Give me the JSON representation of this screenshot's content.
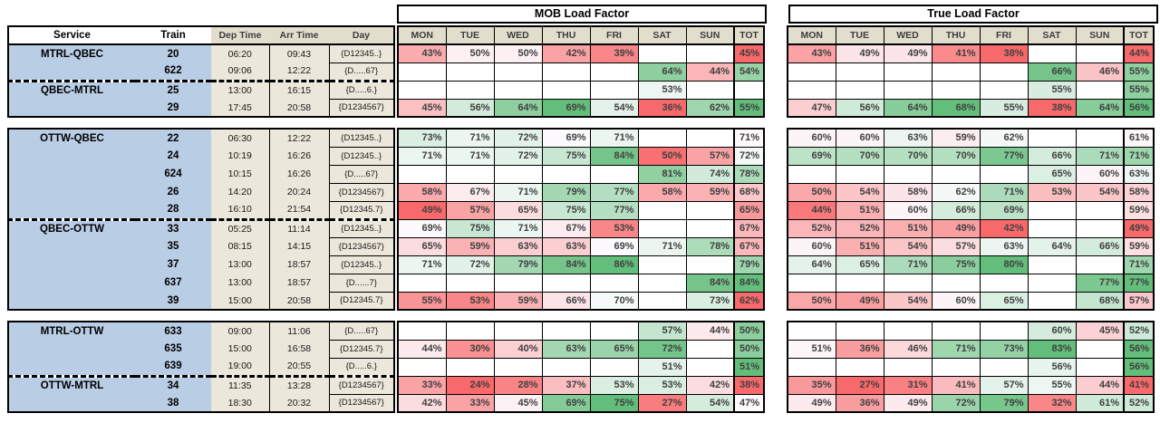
{
  "table": {
    "section_titles": {
      "mob": "MOB Load Factor",
      "true": "True Load Factor"
    },
    "left_headers": {
      "service": "Service",
      "train": "Train",
      "dep": "Dep Time",
      "arr": "Arr Time",
      "day": "Day"
    },
    "day_columns": [
      "MON",
      "TUE",
      "WED",
      "THU",
      "FRI",
      "SAT",
      "SUN",
      "TOT"
    ],
    "colors": {
      "service_bg": "#b9cde5",
      "time_bg": "#ebe7da",
      "header_bg": "#e2decd",
      "scale_red": "#f8696b",
      "scale_white": "#fcfcff",
      "scale_green": "#63be7b",
      "border": "#000000",
      "value_text": "#404040"
    },
    "blocks": [
      {
        "groups": [
          {
            "service": "MTRL-QBEC",
            "rows": [
              {
                "train": "20",
                "dep": "06:20",
                "arr": "09:43",
                "day": "{D12345..}",
                "mob": [
                  "43%",
                  "50%",
                  "50%",
                  "42%",
                  "39%",
                  "",
                  ""
                ],
                "mob_tot": "45%",
                "true": [
                  "43%",
                  "49%",
                  "49%",
                  "41%",
                  "38%",
                  "",
                  ""
                ],
                "true_tot": "44%"
              },
              {
                "train": "622",
                "dep": "09:06",
                "arr": "12:22",
                "day": "{D.....67}",
                "mob": [
                  "",
                  "",
                  "",
                  "",
                  "",
                  "64%",
                  "44%"
                ],
                "mob_tot": "54%",
                "true": [
                  "",
                  "",
                  "",
                  "",
                  "",
                  "66%",
                  "46%"
                ],
                "true_tot": "55%"
              }
            ]
          },
          {
            "service": "QBEC-MTRL",
            "rows": [
              {
                "train": "25",
                "dep": "13:00",
                "arr": "16:15",
                "day": "{D.....6.}",
                "mob": [
                  "",
                  "",
                  "",
                  "",
                  "",
                  "53%",
                  ""
                ],
                "mob_tot": "",
                "true": [
                  "",
                  "",
                  "",
                  "",
                  "",
                  "55%",
                  ""
                ],
                "true_tot": "55%"
              },
              {
                "train": "29",
                "dep": "17:45",
                "arr": "20:58",
                "day": "{D1234567}",
                "mob": [
                  "45%",
                  "56%",
                  "64%",
                  "69%",
                  "54%",
                  "36%",
                  "62%"
                ],
                "mob_tot": "55%",
                "true": [
                  "47%",
                  "56%",
                  "64%",
                  "68%",
                  "55%",
                  "38%",
                  "64%"
                ],
                "true_tot": "56%"
              }
            ]
          }
        ]
      },
      {
        "groups": [
          {
            "service": "OTTW-QBEC",
            "rows": [
              {
                "train": "22",
                "dep": "06:30",
                "arr": "12:22",
                "day": "{D12345..}",
                "mob": [
                  "73%",
                  "71%",
                  "72%",
                  "69%",
                  "71%",
                  "",
                  ""
                ],
                "mob_tot": "71%",
                "true": [
                  "60%",
                  "60%",
                  "63%",
                  "59%",
                  "62%",
                  "",
                  ""
                ],
                "true_tot": "61%"
              },
              {
                "train": "24",
                "dep": "10:19",
                "arr": "16:26",
                "day": "{D12345..}",
                "mob": [
                  "71%",
                  "71%",
                  "72%",
                  "75%",
                  "84%",
                  "50%",
                  "57%"
                ],
                "mob_tot": "72%",
                "true": [
                  "69%",
                  "70%",
                  "70%",
                  "70%",
                  "77%",
                  "66%",
                  "71%"
                ],
                "true_tot": "71%"
              },
              {
                "train": "624",
                "dep": "10:15",
                "arr": "16:26",
                "day": "{D.....67}",
                "mob": [
                  "",
                  "",
                  "",
                  "",
                  "",
                  "81%",
                  "74%"
                ],
                "mob_tot": "78%",
                "true": [
                  "",
                  "",
                  "",
                  "",
                  "",
                  "65%",
                  "60%"
                ],
                "true_tot": "63%"
              },
              {
                "train": "26",
                "dep": "14:20",
                "arr": "20:24",
                "day": "{D1234567}",
                "mob": [
                  "58%",
                  "67%",
                  "71%",
                  "79%",
                  "77%",
                  "58%",
                  "59%"
                ],
                "mob_tot": "68%",
                "true": [
                  "50%",
                  "54%",
                  "58%",
                  "62%",
                  "71%",
                  "53%",
                  "54%"
                ],
                "true_tot": "58%"
              },
              {
                "train": "28",
                "dep": "16:10",
                "arr": "21:54",
                "day": "{D12345.7}",
                "mob": [
                  "49%",
                  "57%",
                  "65%",
                  "75%",
                  "77%",
                  "",
                  ""
                ],
                "mob_tot": "65%",
                "true": [
                  "44%",
                  "51%",
                  "60%",
                  "66%",
                  "69%",
                  "",
                  ""
                ],
                "true_tot": "59%"
              }
            ]
          },
          {
            "service": "QBEC-OTTW",
            "rows": [
              {
                "train": "33",
                "dep": "05:25",
                "arr": "11:14",
                "day": "{D12345..}",
                "mob": [
                  "69%",
                  "75%",
                  "71%",
                  "67%",
                  "53%",
                  "",
                  ""
                ],
                "mob_tot": "67%",
                "true": [
                  "52%",
                  "52%",
                  "51%",
                  "49%",
                  "42%",
                  "",
                  ""
                ],
                "true_tot": "49%"
              },
              {
                "train": "35",
                "dep": "08:15",
                "arr": "14:15",
                "day": "{D1234567}",
                "mob": [
                  "65%",
                  "59%",
                  "63%",
                  "63%",
                  "69%",
                  "71%",
                  "78%"
                ],
                "mob_tot": "67%",
                "true": [
                  "60%",
                  "51%",
                  "54%",
                  "57%",
                  "63%",
                  "64%",
                  "66%"
                ],
                "true_tot": "59%"
              },
              {
                "train": "37",
                "dep": "13:00",
                "arr": "18:57",
                "day": "{D12345..}",
                "mob": [
                  "71%",
                  "72%",
                  "79%",
                  "84%",
                  "86%",
                  "",
                  ""
                ],
                "mob_tot": "79%",
                "true": [
                  "64%",
                  "65%",
                  "71%",
                  "75%",
                  "80%",
                  "",
                  ""
                ],
                "true_tot": "71%"
              },
              {
                "train": "637",
                "dep": "13:00",
                "arr": "18:57",
                "day": "{D......7}",
                "mob": [
                  "",
                  "",
                  "",
                  "",
                  "",
                  "",
                  "84%"
                ],
                "mob_tot": "84%",
                "true": [
                  "",
                  "",
                  "",
                  "",
                  "",
                  "",
                  "77%"
                ],
                "true_tot": "77%"
              },
              {
                "train": "39",
                "dep": "15:00",
                "arr": "20:58",
                "day": "{D12345.7}",
                "mob": [
                  "55%",
                  "53%",
                  "59%",
                  "66%",
                  "70%",
                  "",
                  "73%"
                ],
                "mob_tot": "62%",
                "true": [
                  "50%",
                  "49%",
                  "54%",
                  "60%",
                  "65%",
                  "",
                  "68%"
                ],
                "true_tot": "57%"
              }
            ]
          }
        ]
      },
      {
        "groups": [
          {
            "service": "MTRL-OTTW",
            "rows": [
              {
                "train": "633",
                "dep": "09:00",
                "arr": "11:06",
                "day": "{D.....67}",
                "mob": [
                  "",
                  "",
                  "",
                  "",
                  "",
                  "57%",
                  "44%"
                ],
                "mob_tot": "50%",
                "true": [
                  "",
                  "",
                  "",
                  "",
                  "",
                  "60%",
                  "45%"
                ],
                "true_tot": "52%"
              },
              {
                "train": "635",
                "dep": "15:00",
                "arr": "16:58",
                "day": "{D12345.7}",
                "mob": [
                  "44%",
                  "30%",
                  "40%",
                  "63%",
                  "65%",
                  "72%",
                  ""
                ],
                "mob_tot": "50%",
                "true": [
                  "51%",
                  "36%",
                  "46%",
                  "71%",
                  "73%",
                  "83%",
                  ""
                ],
                "true_tot": "56%"
              },
              {
                "train": "639",
                "dep": "19:00",
                "arr": "20:55",
                "day": "{D.....6.}",
                "mob": [
                  "",
                  "",
                  "",
                  "",
                  "",
                  "51%",
                  ""
                ],
                "mob_tot": "51%",
                "true": [
                  "",
                  "",
                  "",
                  "",
                  "",
                  "56%",
                  ""
                ],
                "true_tot": "56%"
              }
            ]
          },
          {
            "service": "OTTW-MTRL",
            "rows": [
              {
                "train": "34",
                "dep": "11:35",
                "arr": "13:28",
                "day": "{D1234567}",
                "mob": [
                  "33%",
                  "24%",
                  "28%",
                  "37%",
                  "53%",
                  "53%",
                  "42%"
                ],
                "mob_tot": "38%",
                "true": [
                  "35%",
                  "27%",
                  "31%",
                  "41%",
                  "57%",
                  "55%",
                  "44%"
                ],
                "true_tot": "41%"
              },
              {
                "train": "38",
                "dep": "18:30",
                "arr": "20:32",
                "day": "{D1234567}",
                "mob": [
                  "42%",
                  "33%",
                  "45%",
                  "69%",
                  "75%",
                  "27%",
                  "54%"
                ],
                "mob_tot": "47%",
                "true": [
                  "49%",
                  "36%",
                  "49%",
                  "72%",
                  "79%",
                  "32%",
                  "61%"
                ],
                "true_tot": "52%"
              }
            ]
          }
        ]
      }
    ]
  }
}
